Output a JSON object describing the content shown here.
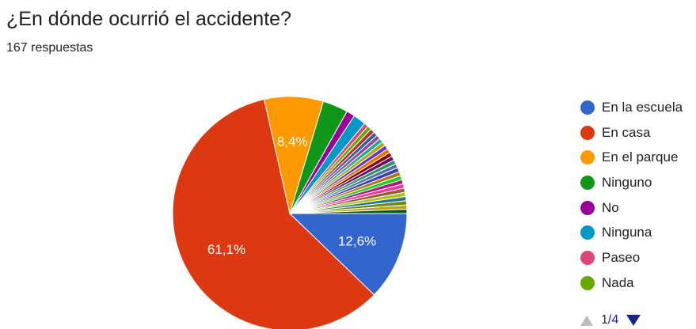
{
  "question": {
    "title": "¿En dónde ocurrió el accidente?",
    "responses": "167 respuestas"
  },
  "chart_data": {
    "type": "pie",
    "title": "¿En dónde ocurrió el accidente?",
    "slices": [
      {
        "name": "En la escuela",
        "value": 12.6,
        "label": "12,6%",
        "color": "#3366cc"
      },
      {
        "name": "En casa",
        "value": 61.1,
        "label": "61,1%",
        "color": "#dc3912"
      },
      {
        "name": "En el parque",
        "value": 8.4,
        "label": "8,4%",
        "color": "#ff9900"
      },
      {
        "name": "Ninguno",
        "value": 3.6,
        "label": "",
        "color": "#109618"
      },
      {
        "name": "No",
        "value": 1.2,
        "label": "",
        "color": "#990099"
      },
      {
        "name": "Ninguna",
        "value": 1.8,
        "label": "",
        "color": "#0099c6"
      },
      {
        "name": "Paseo",
        "value": 0.6,
        "label": "",
        "color": "#dd4477"
      },
      {
        "name": "Nada",
        "value": 0.6,
        "label": "",
        "color": "#66aa00"
      },
      {
        "name": "",
        "value": 0.6,
        "label": "",
        "color": "#b82e2e"
      },
      {
        "name": "",
        "value": 0.6,
        "label": "",
        "color": "#316395"
      },
      {
        "name": "",
        "value": 0.6,
        "label": "",
        "color": "#994499"
      },
      {
        "name": "",
        "value": 0.6,
        "label": "",
        "color": "#22aa99"
      },
      {
        "name": "",
        "value": 0.6,
        "label": "",
        "color": "#aaaa11"
      },
      {
        "name": "",
        "value": 0.6,
        "label": "",
        "color": "#6633cc"
      },
      {
        "name": "",
        "value": 0.6,
        "label": "",
        "color": "#e67300"
      },
      {
        "name": "",
        "value": 0.6,
        "label": "",
        "color": "#8b0707"
      },
      {
        "name": "",
        "value": 0.6,
        "label": "",
        "color": "#651067"
      },
      {
        "name": "",
        "value": 0.6,
        "label": "",
        "color": "#329262"
      },
      {
        "name": "",
        "value": 0.6,
        "label": "",
        "color": "#5574a6"
      },
      {
        "name": "",
        "value": 0.6,
        "label": "",
        "color": "#3b3eac"
      },
      {
        "name": "",
        "value": 0.6,
        "label": "",
        "color": "#b77322"
      },
      {
        "name": "",
        "value": 0.6,
        "label": "",
        "color": "#16d620"
      },
      {
        "name": "",
        "value": 0.6,
        "label": "",
        "color": "#b91383"
      },
      {
        "name": "",
        "value": 0.6,
        "label": "",
        "color": "#f4359e"
      },
      {
        "name": "",
        "value": 0.6,
        "label": "",
        "color": "#9c5935"
      },
      {
        "name": "",
        "value": 0.6,
        "label": "",
        "color": "#a9c413"
      },
      {
        "name": "",
        "value": 0.6,
        "label": "",
        "color": "#2a778d"
      },
      {
        "name": "",
        "value": 0.6,
        "label": "",
        "color": "#668d1c"
      },
      {
        "name": "",
        "value": 0.6,
        "label": "",
        "color": "#bea413"
      },
      {
        "name": "",
        "value": 0.6,
        "label": "",
        "color": "#0c5922"
      }
    ],
    "legend": {
      "position": "right",
      "page": "1/4",
      "items": [
        "En la escuela",
        "En casa",
        "En el parque",
        "Ninguno",
        "No",
        "Ninguna",
        "Paseo",
        "Nada"
      ]
    }
  }
}
